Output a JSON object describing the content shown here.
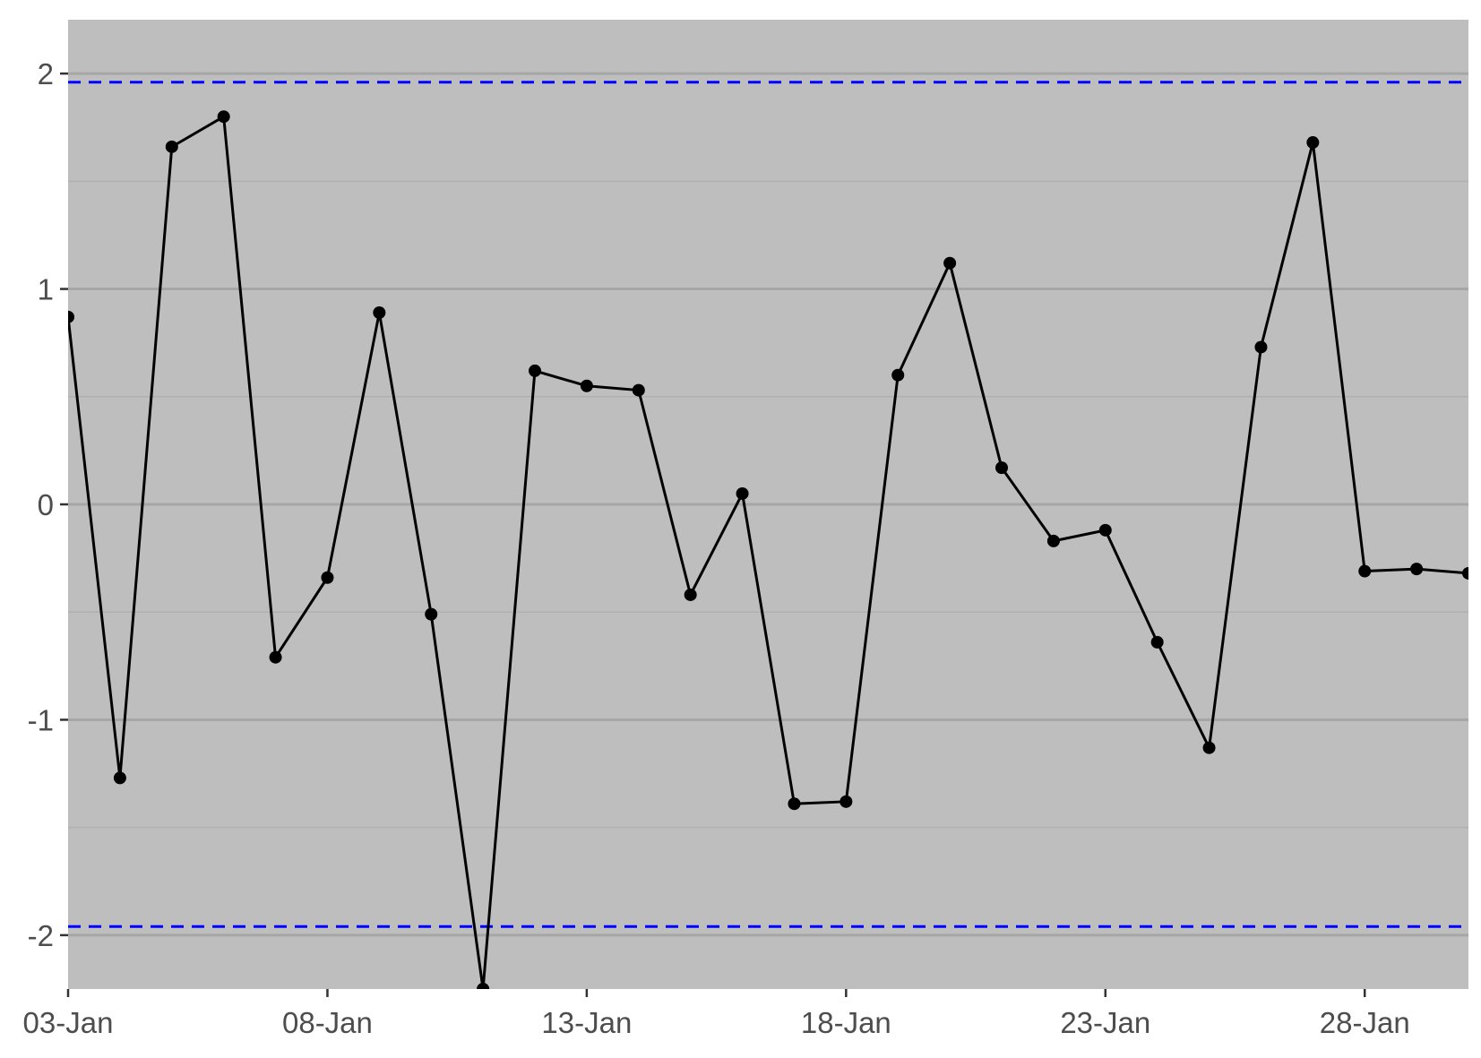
{
  "colors": {
    "panel_background": "#bebebe",
    "grid_major": "#a6a6a6",
    "grid_minor": "#b0b0b0",
    "series_line": "#000000",
    "reference_line": "#0000ff",
    "tick_text": "#4d4d4d"
  },
  "chart_data": {
    "type": "line",
    "title": "",
    "xlabel": "",
    "ylabel": "",
    "x_axis": {
      "type": "date",
      "ticks": [
        "03-Jan",
        "08-Jan",
        "13-Jan",
        "18-Jan",
        "23-Jan",
        "28-Jan"
      ]
    },
    "y_axis": {
      "ticks": [
        "2",
        "1",
        "0",
        "-1",
        "-2"
      ],
      "ylim": [
        -2.25,
        2.25
      ]
    },
    "grid": true,
    "legend": "none",
    "reference_lines": [
      {
        "y": 1.96,
        "style": "dashed",
        "color": "#0000ff"
      },
      {
        "y": -1.96,
        "style": "dashed",
        "color": "#0000ff"
      }
    ],
    "series": [
      {
        "markers": true,
        "x": [
          "03-Jan",
          "04-Jan",
          "05-Jan",
          "06-Jan",
          "07-Jan",
          "08-Jan",
          "09-Jan",
          "10-Jan",
          "11-Jan",
          "12-Jan",
          "13-Jan",
          "14-Jan",
          "15-Jan",
          "16-Jan",
          "17-Jan",
          "18-Jan",
          "19-Jan",
          "20-Jan",
          "21-Jan",
          "22-Jan",
          "23-Jan",
          "24-Jan",
          "25-Jan",
          "26-Jan",
          "27-Jan",
          "28-Jan",
          "29-Jan",
          "30-Jan"
        ],
        "values": [
          0.87,
          -1.27,
          1.66,
          1.8,
          -0.71,
          -0.34,
          0.89,
          -0.51,
          -2.25,
          0.62,
          0.55,
          0.53,
          -0.42,
          0.05,
          -1.39,
          -1.38,
          0.6,
          1.12,
          0.17,
          -0.17,
          -0.12,
          -0.64,
          -1.13,
          0.73,
          1.68,
          -0.31,
          -0.3,
          -0.32
        ]
      }
    ]
  }
}
